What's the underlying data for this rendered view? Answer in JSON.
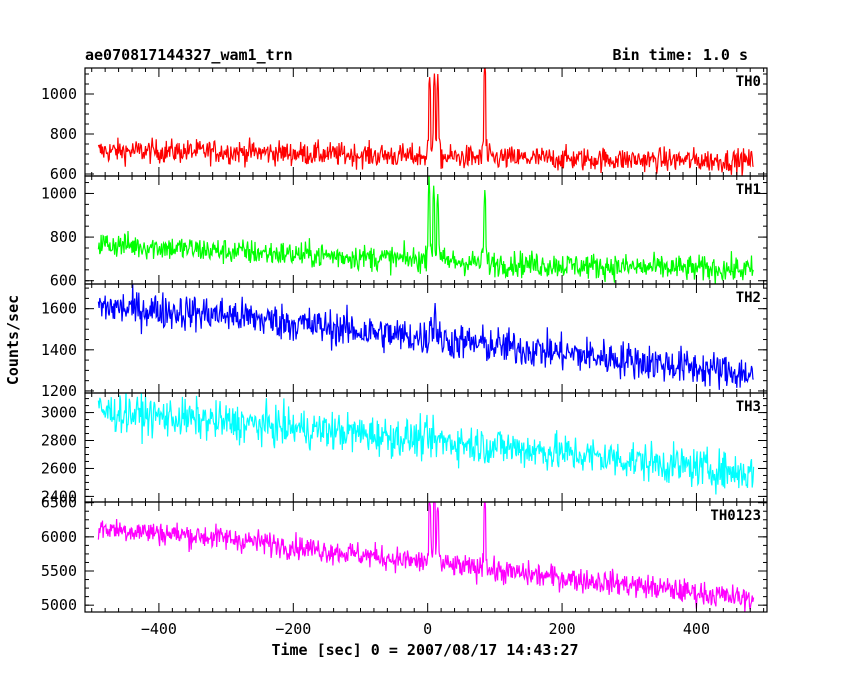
{
  "header": {
    "title": "ae070817144327_wam1_trn",
    "bin_time": "Bin time: 1.0 s"
  },
  "chart_data": {
    "type": "line",
    "title": "ae070817144327_wam1_trn",
    "xlabel": "Time [sec] 0 = 2007/08/17 14:43:27",
    "ylabel": "Counts/sec",
    "xlim": [
      -510,
      505
    ],
    "x_ticks": [
      -400,
      -200,
      0,
      200,
      400
    ],
    "x_tick_labels": [
      "−400",
      "−200",
      "0",
      "200",
      "400"
    ],
    "x_range": [
      -490,
      485
    ],
    "grid": false,
    "legend": "none",
    "panels": [
      {
        "name": "TH0",
        "color": "#ff0000",
        "ylim": [
          590,
          1130
        ],
        "y_ticks": [
          600,
          800,
          1000
        ],
        "y_tick_labels": [
          "600",
          "800",
          "1000"
        ],
        "trend": [
          [
            -490,
            715
          ],
          [
            -300,
            712
          ],
          [
            -100,
            695
          ],
          [
            100,
            680
          ],
          [
            300,
            672
          ],
          [
            485,
            665
          ]
        ],
        "noise": 30,
        "bursts": [
          [
            3,
            1100
          ],
          [
            10,
            1090
          ],
          [
            15,
            1080
          ],
          [
            85,
            1150
          ]
        ]
      },
      {
        "name": "TH1",
        "color": "#00ff00",
        "ylim": [
          585,
          1080
        ],
        "y_ticks": [
          600,
          800,
          1000
        ],
        "y_tick_labels": [
          "600",
          "800",
          "1000"
        ],
        "trend": [
          [
            -490,
            770
          ],
          [
            -300,
            735
          ],
          [
            -100,
            708
          ],
          [
            100,
            680
          ],
          [
            300,
            662
          ],
          [
            485,
            650
          ]
        ],
        "noise": 30,
        "bursts": [
          [
            2,
            1080
          ],
          [
            9,
            1030
          ],
          [
            15,
            1000
          ],
          [
            85,
            1020
          ]
        ]
      },
      {
        "name": "TH2",
        "color": "#0000ff",
        "ylim": [
          1190,
          1720
        ],
        "y_ticks": [
          1200,
          1400,
          1600
        ],
        "y_tick_labels": [
          "1200",
          "1400",
          "1600"
        ],
        "trend": [
          [
            -490,
            1610
          ],
          [
            -300,
            1570
          ],
          [
            -100,
            1490
          ],
          [
            100,
            1420
          ],
          [
            300,
            1350
          ],
          [
            485,
            1280
          ]
        ],
        "noise": 45,
        "bursts": [
          [
            5,
            1580
          ],
          [
            11,
            1640
          ]
        ]
      },
      {
        "name": "TH3",
        "color": "#00ffff",
        "ylim": [
          2360,
          3140
        ],
        "y_ticks": [
          2400,
          2600,
          2800,
          3000
        ],
        "y_tick_labels": [
          "2400",
          "2600",
          "2800",
          "3000"
        ],
        "trend": [
          [
            -490,
            3010
          ],
          [
            -300,
            2930
          ],
          [
            -100,
            2850
          ],
          [
            100,
            2760
          ],
          [
            300,
            2660
          ],
          [
            485,
            2560
          ]
        ],
        "noise": 70,
        "bursts": []
      },
      {
        "name": "TH0123",
        "color": "#ff00ff",
        "ylim": [
          4900,
          6510
        ],
        "y_ticks": [
          5000,
          5500,
          6000,
          6500
        ],
        "y_tick_labels": [
          "5000",
          "5500",
          "6000",
          "6500"
        ],
        "trend": [
          [
            -490,
            6130
          ],
          [
            -300,
            5980
          ],
          [
            -100,
            5740
          ],
          [
            100,
            5500
          ],
          [
            300,
            5300
          ],
          [
            485,
            5080
          ]
        ],
        "noise": 90,
        "bursts": [
          [
            3,
            6520
          ],
          [
            10,
            6520
          ],
          [
            15,
            6450
          ],
          [
            85,
            6520
          ]
        ]
      }
    ]
  }
}
